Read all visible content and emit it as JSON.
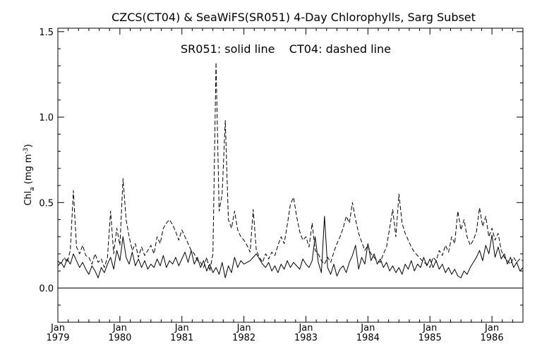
{
  "chart_data": {
    "type": "line",
    "title": "CZCS(CT04) & SeaWiFS(SR051) 4-Day Chlorophylls, Sarg Subset",
    "annotation": "SR051: solid line    CT04: dashed line",
    "ylabel": {
      "main": "Chl",
      "sub": "a",
      "units": "(mg m",
      "sup": "-3",
      "close": ")"
    },
    "xlim": [
      1979.0,
      1986.5
    ],
    "ylim": [
      -0.2,
      1.52
    ],
    "y_ticks": [
      0.0,
      0.5,
      1.0,
      1.5
    ],
    "y_tick_labels": [
      "0.0",
      "0.5",
      "1.0",
      "1.5"
    ],
    "x_ticks": [
      1979,
      1980,
      1981,
      1982,
      1983,
      1984,
      1985,
      1986
    ],
    "x_tick_month_label": "Jan",
    "x_tick_year_labels": [
      "1979",
      "1980",
      "1981",
      "1982",
      "1983",
      "1984",
      "1985",
      "1986"
    ],
    "reference_line_y": 0.0,
    "grid": false,
    "series": [
      {
        "style": "solid",
        "x": [
          1979.0,
          1979.05,
          1979.1,
          1979.15,
          1979.2,
          1979.25,
          1979.3,
          1979.35,
          1979.4,
          1979.45,
          1979.5,
          1979.55,
          1979.6,
          1979.65,
          1979.7,
          1979.75,
          1979.8,
          1979.85,
          1979.9,
          1979.95,
          1980.0,
          1980.05,
          1980.1,
          1980.15,
          1980.2,
          1980.25,
          1980.3,
          1980.35,
          1980.4,
          1980.45,
          1980.5,
          1980.55,
          1980.6,
          1980.65,
          1980.7,
          1980.75,
          1980.8,
          1980.85,
          1980.9,
          1980.95,
          1981.0,
          1981.05,
          1981.1,
          1981.15,
          1981.2,
          1981.25,
          1981.3,
          1981.35,
          1981.4,
          1981.45,
          1981.5,
          1981.55,
          1981.6,
          1981.65,
          1981.7,
          1981.75,
          1981.8,
          1981.85,
          1981.9,
          1981.95,
          1982.0,
          1982.05,
          1982.1,
          1982.15,
          1982.2,
          1982.25,
          1982.3,
          1982.35,
          1982.4,
          1982.45,
          1982.5,
          1982.55,
          1982.6,
          1982.65,
          1982.7,
          1982.75,
          1982.8,
          1982.85,
          1982.9,
          1982.95,
          1983.0,
          1983.05,
          1983.1,
          1983.15,
          1983.2,
          1983.25,
          1983.3,
          1983.35,
          1983.4,
          1983.45,
          1983.5,
          1983.55,
          1983.6,
          1983.65,
          1983.7,
          1983.75,
          1983.8,
          1983.85,
          1983.9,
          1983.95,
          1984.0,
          1984.05,
          1984.1,
          1984.15,
          1984.2,
          1984.25,
          1984.3,
          1984.35,
          1984.4,
          1984.45,
          1984.5,
          1984.55,
          1984.6,
          1984.65,
          1984.7,
          1984.75,
          1984.8,
          1984.85,
          1984.9,
          1984.95,
          1985.0,
          1985.05,
          1985.1,
          1985.15,
          1985.2,
          1985.25,
          1985.3,
          1985.35,
          1985.4,
          1985.45,
          1985.5,
          1985.55,
          1985.6,
          1985.65,
          1985.7,
          1985.75,
          1985.8,
          1985.85,
          1985.9,
          1985.95,
          1986.0,
          1986.05,
          1986.1,
          1986.15,
          1986.2,
          1986.25,
          1986.3,
          1986.35,
          1986.4,
          1986.45,
          1986.5
        ],
        "y": [
          0.13,
          0.15,
          0.12,
          0.17,
          0.14,
          0.2,
          0.16,
          0.12,
          0.15,
          0.11,
          0.08,
          0.13,
          0.1,
          0.06,
          0.12,
          0.09,
          0.14,
          0.18,
          0.11,
          0.22,
          0.16,
          0.3,
          0.18,
          0.14,
          0.21,
          0.13,
          0.17,
          0.12,
          0.16,
          0.11,
          0.14,
          0.12,
          0.17,
          0.13,
          0.19,
          0.12,
          0.16,
          0.14,
          0.18,
          0.13,
          0.17,
          0.21,
          0.15,
          0.22,
          0.14,
          0.18,
          0.12,
          0.16,
          0.1,
          0.14,
          0.09,
          0.12,
          0.08,
          0.15,
          0.06,
          0.13,
          0.09,
          0.18,
          0.12,
          0.16,
          0.14,
          0.15,
          0.16,
          0.18,
          0.2,
          0.17,
          0.14,
          0.12,
          0.15,
          0.1,
          0.13,
          0.09,
          0.14,
          0.11,
          0.16,
          0.12,
          0.15,
          0.13,
          0.11,
          0.17,
          0.14,
          0.12,
          0.16,
          0.3,
          0.15,
          0.09,
          0.42,
          0.12,
          0.08,
          0.14,
          0.07,
          0.11,
          0.13,
          0.09,
          0.15,
          0.19,
          0.25,
          0.11,
          0.18,
          0.14,
          0.26,
          0.16,
          0.2,
          0.14,
          0.17,
          0.12,
          0.15,
          0.1,
          0.13,
          0.09,
          0.12,
          0.08,
          0.14,
          0.11,
          0.16,
          0.1,
          0.14,
          0.12,
          0.18,
          0.13,
          0.17,
          0.12,
          0.16,
          0.11,
          0.14,
          0.09,
          0.12,
          0.08,
          0.11,
          0.07,
          0.06,
          0.1,
          0.08,
          0.12,
          0.15,
          0.18,
          0.22,
          0.16,
          0.25,
          0.2,
          0.31,
          0.18,
          0.24,
          0.17,
          0.2,
          0.14,
          0.18,
          0.12,
          0.15,
          0.1,
          0.12
        ]
      },
      {
        "style": "dashed",
        "x": [
          1979.0,
          1979.05,
          1979.1,
          1979.15,
          1979.2,
          1979.25,
          1979.3,
          1979.35,
          1979.4,
          1979.45,
          1979.5,
          1979.55,
          1979.6,
          1979.65,
          1979.7,
          1979.75,
          1979.8,
          1979.85,
          1979.9,
          1979.95,
          1980.0,
          1980.05,
          1980.1,
          1980.15,
          1980.2,
          1980.25,
          1980.3,
          1980.35,
          1980.4,
          1980.45,
          1980.5,
          1980.55,
          1980.6,
          1980.65,
          1980.7,
          1980.75,
          1980.8,
          1980.85,
          1980.9,
          1980.95,
          1981.0,
          1981.05,
          1981.1,
          1981.15,
          1981.2,
          1981.25,
          1981.3,
          1981.35,
          1981.4,
          1981.45,
          1981.5,
          1981.55,
          1981.6,
          1981.65,
          1981.7,
          1981.75,
          1981.8,
          1981.85,
          1981.9,
          1981.95,
          1982.0,
          1982.05,
          1982.1,
          1982.15,
          1982.2,
          1982.25,
          1982.3,
          1982.35,
          1982.4,
          1982.45,
          1982.5,
          1982.55,
          1982.6,
          1982.65,
          1982.7,
          1982.75,
          1982.8,
          1982.85,
          1982.9,
          1982.95,
          1983.0,
          1983.05,
          1983.1,
          1983.15,
          1983.2,
          1983.25,
          1983.3,
          1983.35,
          1983.4,
          1983.45,
          1983.5,
          1983.55,
          1983.6,
          1983.65,
          1983.7,
          1983.75,
          1983.8,
          1983.85,
          1983.9,
          1983.95,
          1984.0,
          1984.05,
          1984.1,
          1984.15,
          1984.2,
          1984.25,
          1984.3,
          1984.35,
          1984.4,
          1984.45,
          1984.5,
          1984.55,
          1984.6,
          1984.65,
          1984.7,
          1984.75,
          1984.8,
          1984.85,
          1984.9,
          1984.95,
          1985.0,
          1985.05,
          1985.1,
          1985.15,
          1985.2,
          1985.25,
          1985.3,
          1985.35,
          1985.4,
          1985.45,
          1985.5,
          1985.55,
          1985.6,
          1985.65,
          1985.7,
          1985.75,
          1985.8,
          1985.85,
          1985.9,
          1985.95,
          1986.0,
          1986.05,
          1986.1,
          1986.15,
          1986.2,
          1986.25,
          1986.3,
          1986.35,
          1986.4,
          1986.45,
          1986.5
        ],
        "y": [
          0.16,
          0.14,
          0.18,
          0.15,
          0.22,
          0.57,
          0.24,
          0.2,
          0.25,
          0.19,
          0.18,
          0.14,
          0.2,
          0.15,
          0.17,
          0.12,
          0.18,
          0.45,
          0.2,
          0.35,
          0.25,
          0.64,
          0.4,
          0.3,
          0.22,
          0.26,
          0.18,
          0.24,
          0.19,
          0.22,
          0.25,
          0.2,
          0.3,
          0.26,
          0.35,
          0.38,
          0.4,
          0.37,
          0.33,
          0.28,
          0.34,
          0.3,
          0.26,
          0.22,
          0.2,
          0.16,
          0.15,
          0.12,
          0.18,
          0.1,
          0.2,
          1.32,
          0.45,
          0.55,
          0.98,
          0.4,
          0.35,
          0.45,
          0.34,
          0.3,
          0.28,
          0.25,
          0.21,
          0.46,
          0.22,
          0.18,
          0.15,
          0.2,
          0.17,
          0.21,
          0.19,
          0.25,
          0.3,
          0.26,
          0.37,
          0.49,
          0.53,
          0.42,
          0.33,
          0.28,
          0.3,
          0.24,
          0.38,
          0.22,
          0.2,
          0.16,
          0.14,
          0.18,
          0.15,
          0.21,
          0.26,
          0.3,
          0.35,
          0.42,
          0.38,
          0.5,
          0.4,
          0.32,
          0.27,
          0.22,
          0.25,
          0.2,
          0.18,
          0.16,
          0.15,
          0.2,
          0.24,
          0.35,
          0.46,
          0.3,
          0.55,
          0.38,
          0.32,
          0.28,
          0.24,
          0.21,
          0.19,
          0.17,
          0.15,
          0.14,
          0.12,
          0.18,
          0.16,
          0.22,
          0.19,
          0.25,
          0.21,
          0.3,
          0.26,
          0.45,
          0.34,
          0.4,
          0.3,
          0.25,
          0.28,
          0.33,
          0.47,
          0.36,
          0.42,
          0.3,
          0.35,
          0.28,
          0.32,
          0.22,
          0.18,
          0.16,
          0.14,
          0.18,
          0.15,
          0.17,
          0.16
        ]
      }
    ]
  }
}
